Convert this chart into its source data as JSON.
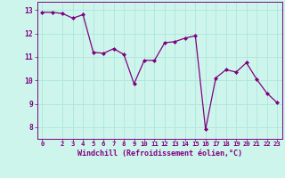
{
  "x": [
    0,
    1,
    2,
    3,
    4,
    5,
    6,
    7,
    8,
    9,
    10,
    11,
    12,
    13,
    14,
    15,
    16,
    17,
    18,
    19,
    20,
    21,
    22,
    23
  ],
  "y": [
    12.9,
    12.9,
    12.85,
    12.65,
    12.8,
    11.2,
    11.15,
    11.35,
    11.1,
    9.85,
    10.85,
    10.85,
    11.6,
    11.65,
    11.8,
    11.9,
    7.9,
    10.1,
    10.45,
    10.35,
    10.75,
    10.05,
    9.45,
    9.05
  ],
  "line_color": "#800080",
  "marker_color": "#800080",
  "bg_color": "#cef5ec",
  "grid_color": "#b0e8de",
  "xlabel": "Windchill (Refroidissement éolien,°C)",
  "ylim": [
    7.5,
    13.35
  ],
  "xlim": [
    -0.5,
    23.5
  ],
  "yticks": [
    8,
    9,
    10,
    11,
    12,
    13
  ],
  "xticks": [
    0,
    2,
    3,
    4,
    5,
    6,
    7,
    8,
    9,
    10,
    11,
    12,
    13,
    14,
    15,
    16,
    17,
    18,
    19,
    20,
    21,
    22,
    23
  ],
  "axis_color": "#800080"
}
